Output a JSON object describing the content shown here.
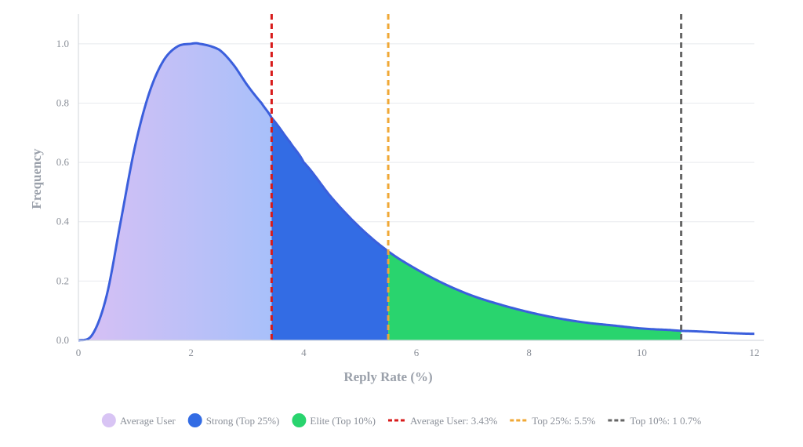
{
  "chart_data": {
    "type": "area",
    "xlabel": "Reply Rate (%)",
    "ylabel": "Frequency",
    "xlim": [
      0,
      12
    ],
    "ylim": [
      0,
      1.1
    ],
    "x_ticks": [
      0,
      2,
      4,
      6,
      8,
      10,
      12
    ],
    "y_ticks": [
      0.0,
      0.2,
      0.4,
      0.6,
      0.8,
      1.0
    ],
    "x_tick_labels": [
      "0",
      "2",
      "4",
      "6",
      "8",
      "10",
      "12"
    ],
    "y_tick_labels": [
      "0.0",
      "0.2",
      "0.4",
      "0.6",
      "0.8",
      "1.0"
    ],
    "grid": true,
    "curve": {
      "x": [
        0,
        0.25,
        0.5,
        0.75,
        1.0,
        1.25,
        1.5,
        1.75,
        2.0,
        2.15,
        2.5,
        2.75,
        3.0,
        3.25,
        3.43,
        3.75,
        4.0,
        4.5,
        5.0,
        5.5,
        6.0,
        6.5,
        7.0,
        7.5,
        8.0,
        8.5,
        9.0,
        9.5,
        10.0,
        10.5,
        10.7,
        11.0,
        11.5,
        12.0
      ],
      "y": [
        0.0,
        0.02,
        0.15,
        0.4,
        0.65,
        0.83,
        0.94,
        0.99,
        1.0,
        1.0,
        0.98,
        0.93,
        0.86,
        0.8,
        0.75,
        0.67,
        0.6,
        0.48,
        0.38,
        0.3,
        0.24,
        0.19,
        0.15,
        0.12,
        0.095,
        0.075,
        0.06,
        0.05,
        0.04,
        0.035,
        0.032,
        0.03,
        0.025,
        0.022
      ]
    },
    "regions": [
      {
        "name": "Average User",
        "from": 0,
        "to": 3.43,
        "color_start": "#d8c0f4",
        "color_end": "#a8c0fa"
      },
      {
        "name": "Strong (Top 25%)",
        "from": 3.43,
        "to": 5.5,
        "color": "#336ce4"
      },
      {
        "name": "Elite (Top 10%)",
        "from": 5.5,
        "to": 10.7,
        "color": "#29d46e"
      }
    ],
    "curve_color": "#3b5fdc",
    "markers": [
      {
        "x": 3.43,
        "color": "#d81b1b",
        "label": "Average User:  3.43%"
      },
      {
        "x": 5.5,
        "color": "#f0a836",
        "label": "Top  25%: 5.5%"
      },
      {
        "x": 10.7,
        "color": "#666666",
        "label": "Top 10%: 1 0.7%"
      }
    ],
    "legend": {
      "placement": "bottom",
      "items": [
        {
          "label": "Average User",
          "color": "#d8c4f4",
          "kind": "dot"
        },
        {
          "label": "Strong  (Top  25%)",
          "color": "#336ce4",
          "kind": "dot"
        },
        {
          "label": "Elite (Top 10%)",
          "color": "#29d46e",
          "kind": "dot"
        },
        {
          "label": "Average User:   3.43%",
          "color": "#d81b1b",
          "kind": "dash"
        },
        {
          "label": "Top  25%: 5.5%",
          "color": "#f0a836",
          "kind": "dash"
        },
        {
          "label": "Top 10%: 1 0.7%",
          "color": "#666666",
          "kind": "dash"
        }
      ]
    }
  }
}
